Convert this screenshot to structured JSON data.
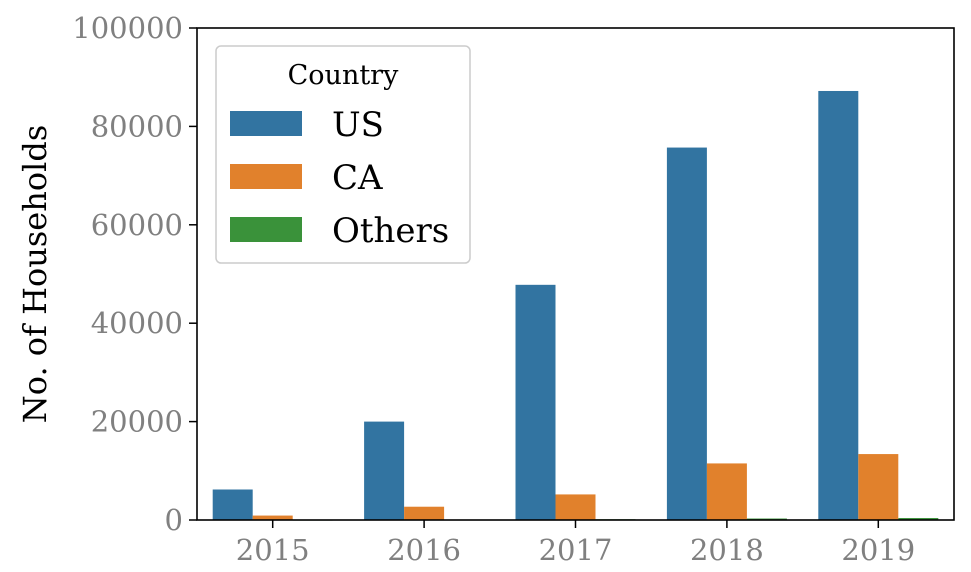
{
  "chart_data": {
    "type": "bar",
    "categories": [
      "2015",
      "2016",
      "2017",
      "2018",
      "2019"
    ],
    "series": [
      {
        "name": "US",
        "values": [
          6200,
          20000,
          47800,
          75700,
          87200
        ],
        "color": "#3274a1"
      },
      {
        "name": "CA",
        "values": [
          900,
          2700,
          5200,
          11500,
          13400
        ],
        "color": "#e1812c"
      },
      {
        "name": "Others",
        "values": [
          50,
          100,
          150,
          300,
          400
        ],
        "color": "#3a923a"
      }
    ],
    "xlabel": "",
    "ylabel": "No. of Households",
    "ylim": [
      0,
      100000
    ],
    "yticks": [
      "0",
      "20000",
      "40000",
      "60000",
      "80000",
      "100000"
    ],
    "legend": {
      "title": "Country",
      "placement": "top-left"
    },
    "grid": false
  }
}
